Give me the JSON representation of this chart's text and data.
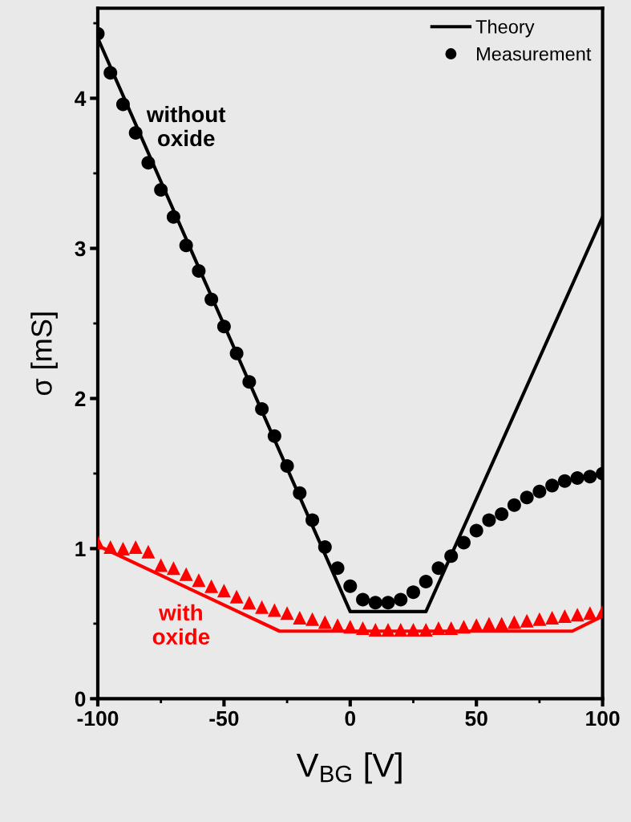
{
  "chart_data": {
    "type": "line",
    "xlabel": "V$_{BG}$ [V]",
    "ylabel": "σ [mS]",
    "xlim": [
      -100,
      100
    ],
    "xticks": [
      -100,
      -50,
      0,
      50,
      100
    ],
    "ylim": [
      0,
      4.6
    ],
    "yticks": [
      0,
      1,
      2,
      3,
      4
    ],
    "legend": "top right",
    "grid": false,
    "series": [
      {
        "name": "Theory",
        "color": "#000000",
        "x": [
          -100,
          0,
          30,
          100
        ],
        "values": [
          4.4,
          0.58,
          0.58,
          3.21
        ]
      },
      {
        "name": "Measurement",
        "type": "scatter",
        "marker": "circle",
        "color": "#000000",
        "x": [
          -100,
          -95,
          -90,
          -85,
          -80,
          -75,
          -70,
          -65,
          -60,
          -55,
          -50,
          -45,
          -40,
          -35,
          -30,
          -25,
          -20,
          -15,
          -10,
          -5,
          0,
          5,
          10,
          15,
          20,
          25,
          30,
          35,
          40,
          45,
          50,
          55,
          60,
          65,
          70,
          75,
          80,
          85,
          90,
          95,
          100
        ],
        "values": [
          4.43,
          4.17,
          3.96,
          3.77,
          3.57,
          3.39,
          3.21,
          3.02,
          2.85,
          2.66,
          2.48,
          2.3,
          2.11,
          1.93,
          1.75,
          1.55,
          1.37,
          1.19,
          1.01,
          0.87,
          0.75,
          0.66,
          0.64,
          0.64,
          0.66,
          0.71,
          0.78,
          0.87,
          0.95,
          1.04,
          1.12,
          1.19,
          1.23,
          1.29,
          1.34,
          1.38,
          1.42,
          1.45,
          1.47,
          1.48,
          1.5
        ]
      },
      {
        "color": "#ff0000",
        "x": [
          -100,
          -28,
          88,
          100
        ],
        "values": [
          1.02,
          0.45,
          0.45,
          0.55
        ]
      },
      {
        "type": "scatter",
        "marker": "triangle",
        "color": "#ff0000",
        "x": [
          -100,
          -95,
          -90,
          -85,
          -80,
          -75,
          -70,
          -65,
          -60,
          -55,
          -50,
          -45,
          -40,
          -35,
          -30,
          -25,
          -20,
          -15,
          -10,
          -5,
          0,
          5,
          10,
          15,
          20,
          25,
          30,
          35,
          40,
          45,
          50,
          55,
          60,
          65,
          70,
          75,
          80,
          85,
          90,
          95,
          100
        ],
        "values": [
          1.04,
          1.01,
          1.0,
          1.01,
          0.98,
          0.89,
          0.87,
          0.83,
          0.79,
          0.75,
          0.72,
          0.68,
          0.64,
          0.61,
          0.59,
          0.57,
          0.54,
          0.53,
          0.51,
          0.49,
          0.48,
          0.47,
          0.46,
          0.46,
          0.46,
          0.46,
          0.46,
          0.47,
          0.47,
          0.48,
          0.49,
          0.5,
          0.5,
          0.51,
          0.52,
          0.53,
          0.54,
          0.55,
          0.56,
          0.57,
          0.58
        ]
      }
    ],
    "annotations": [
      "without\noxide",
      "with\noxide"
    ]
  }
}
